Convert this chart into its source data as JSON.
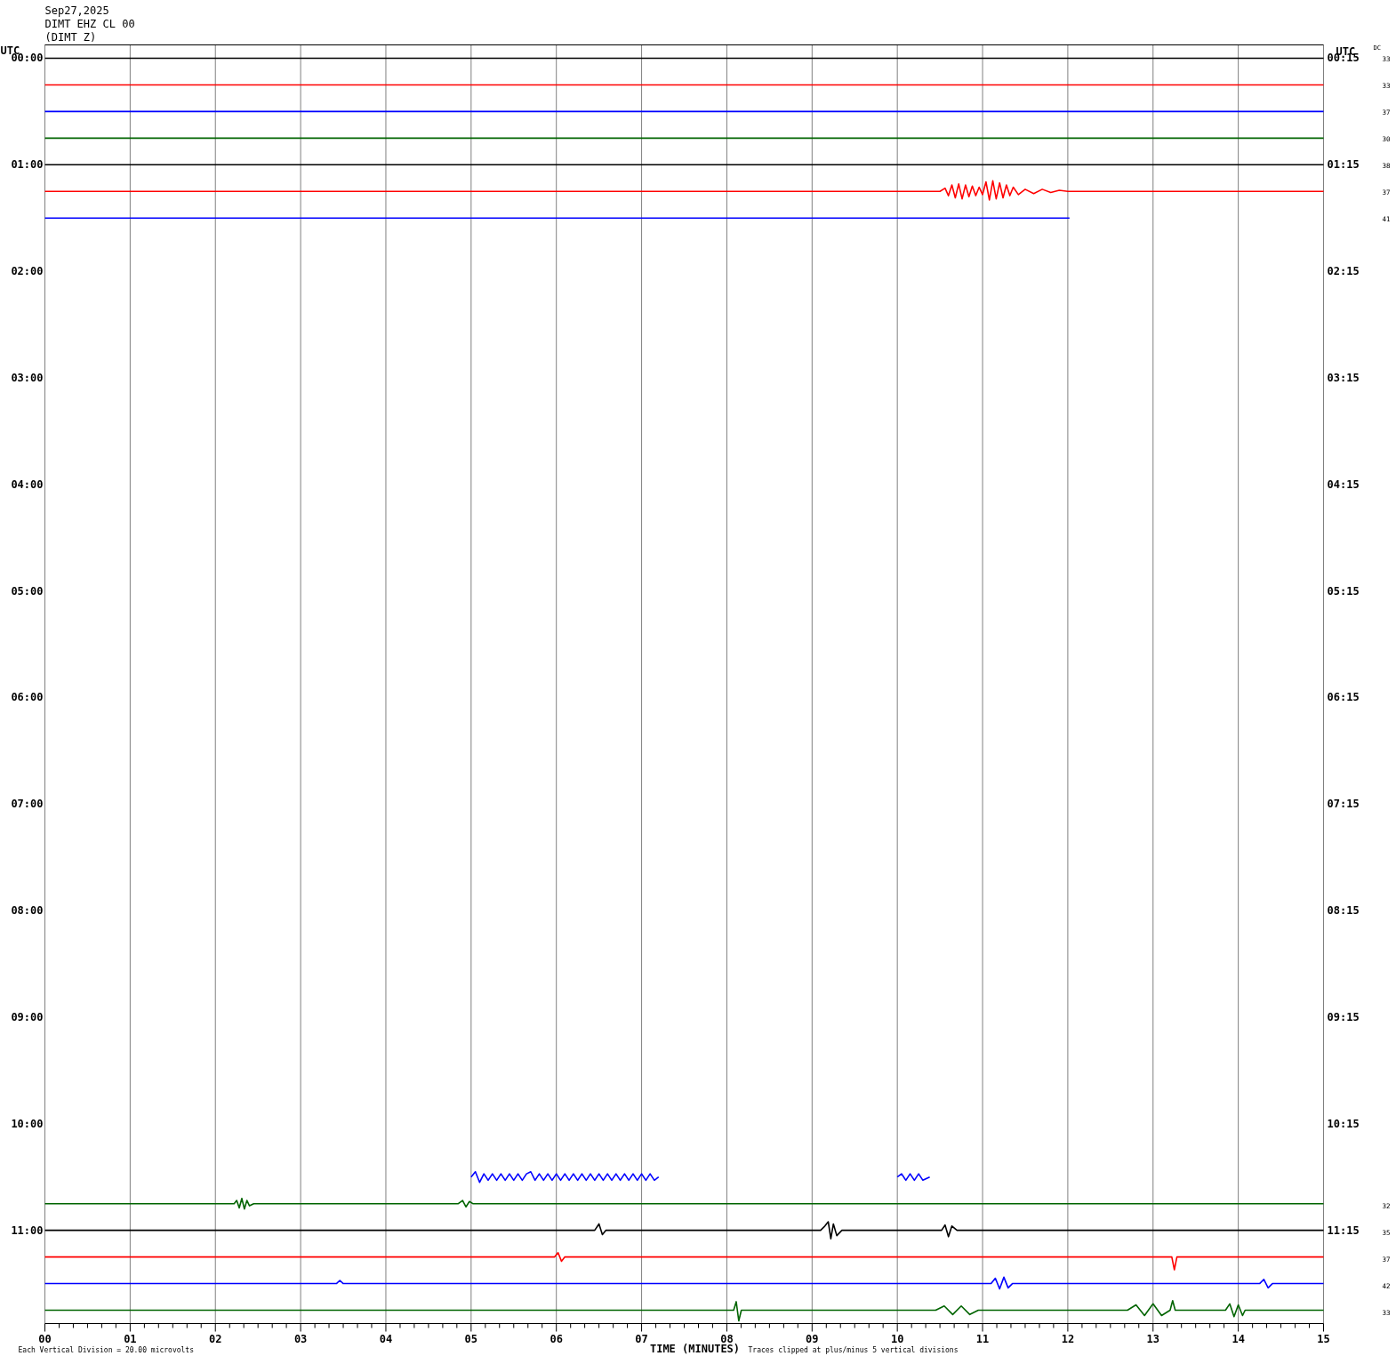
{
  "chart_data": {
    "type": "line",
    "title": "Sep27,2025",
    "subtitle": "DIMT EHZ CL 00\n(DIMT Z)",
    "xlabel": "TIME (MINUTES)",
    "ylabel": "UTC",
    "y2label": "UTC",
    "annotations": [
      "DC",
      "33",
      "33",
      "37",
      "30",
      "38",
      "37",
      "41",
      "32",
      "35",
      "37",
      "42",
      "33",
      "Each Vertical Division = 20.00 microvolts",
      "Traces clipped at plus/minus 5 vertical divisions"
    ],
    "xlim": [
      0,
      15
    ],
    "xticks": [
      {
        "value": 0,
        "label": "00"
      },
      {
        "value": 0.167,
        "label": null
      },
      {
        "value": 0.333,
        "label": null
      },
      {
        "value": 0.5,
        "label": null
      },
      {
        "value": 0.667,
        "label": null
      },
      {
        "value": 0.833,
        "label": null
      },
      {
        "value": 1,
        "label": "01"
      },
      {
        "value": 1.167,
        "label": null
      },
      {
        "value": 1.333,
        "label": null
      },
      {
        "value": 1.5,
        "label": null
      },
      {
        "value": 1.667,
        "label": null
      },
      {
        "value": 1.833,
        "label": null
      },
      {
        "value": 2,
        "label": "02"
      },
      {
        "value": 2.167,
        "label": null
      },
      {
        "value": 2.333,
        "label": null
      },
      {
        "value": 2.5,
        "label": null
      },
      {
        "value": 2.667,
        "label": null
      },
      {
        "value": 2.833,
        "label": null
      },
      {
        "value": 3,
        "label": "03"
      },
      {
        "value": 3.167,
        "label": null
      },
      {
        "value": 3.333,
        "label": null
      },
      {
        "value": 3.5,
        "label": null
      },
      {
        "value": 3.667,
        "label": null
      },
      {
        "value": 3.833,
        "label": null
      },
      {
        "value": 4,
        "label": "04"
      },
      {
        "value": 4.167,
        "label": null
      },
      {
        "value": 4.333,
        "label": null
      },
      {
        "value": 4.5,
        "label": null
      },
      {
        "value": 4.667,
        "label": null
      },
      {
        "value": 4.833,
        "label": null
      },
      {
        "value": 5,
        "label": "05"
      },
      {
        "value": 5.167,
        "label": null
      },
      {
        "value": 5.333,
        "label": null
      },
      {
        "value": 5.5,
        "label": null
      },
      {
        "value": 5.667,
        "label": null
      },
      {
        "value": 5.833,
        "label": null
      },
      {
        "value": 6,
        "label": "06"
      },
      {
        "value": 6.167,
        "label": null
      },
      {
        "value": 6.333,
        "label": null
      },
      {
        "value": 6.5,
        "label": null
      },
      {
        "value": 6.667,
        "label": null
      },
      {
        "value": 6.833,
        "label": null
      },
      {
        "value": 7,
        "label": "07"
      },
      {
        "value": 7.167,
        "label": null
      },
      {
        "value": 7.333,
        "label": null
      },
      {
        "value": 7.5,
        "label": null
      },
      {
        "value": 7.667,
        "label": null
      },
      {
        "value": 7.833,
        "label": null
      },
      {
        "value": 8,
        "label": "08"
      },
      {
        "value": 8.167,
        "label": null
      },
      {
        "value": 8.333,
        "label": null
      },
      {
        "value": 8.5,
        "label": null
      },
      {
        "value": 8.667,
        "label": null
      },
      {
        "value": 8.833,
        "label": null
      },
      {
        "value": 9,
        "label": "09"
      },
      {
        "value": 9.167,
        "label": null
      },
      {
        "value": 9.333,
        "label": null
      },
      {
        "value": 9.5,
        "label": null
      },
      {
        "value": 9.667,
        "label": null
      },
      {
        "value": 9.833,
        "label": null
      },
      10,
      {
        "value": 10.167,
        "label": null
      },
      {
        "value": 10.333,
        "label": null
      },
      {
        "value": 10.5,
        "label": null
      },
      {
        "value": 10.667,
        "label": null
      },
      {
        "value": 10.833,
        "label": null
      },
      11,
      {
        "value": 11.167,
        "label": null
      },
      {
        "value": 11.333,
        "label": null
      },
      {
        "value": 11.5,
        "label": null
      },
      {
        "value": 11.667,
        "label": null
      },
      {
        "value": 11.833,
        "label": null
      },
      12,
      {
        "value": 12.167,
        "label": null
      },
      {
        "value": 12.333,
        "label": null
      },
      {
        "value": 12.5,
        "label": null
      },
      {
        "value": 12.667,
        "label": null
      },
      {
        "value": 12.833,
        "label": null
      },
      13,
      {
        "value": 13.167,
        "label": null
      },
      {
        "value": 13.333,
        "label": null
      },
      {
        "value": 13.5,
        "label": null
      },
      {
        "value": 13.667,
        "label": null
      },
      {
        "value": 13.833,
        "label": null
      },
      14,
      {
        "value": 14.167,
        "label": null
      },
      {
        "value": 14.333,
        "label": null
      },
      {
        "value": 14.5,
        "label": null
      },
      {
        "value": 14.667,
        "label": null
      },
      {
        "value": 14.833,
        "label": null
      },
      15
    ],
    "ylim": [
      11.875,
      -0.125
    ],
    "yticks": [
      {
        "value": 0,
        "label": "00:00"
      },
      {
        "value": 1,
        "label": "01:00"
      },
      {
        "value": 2,
        "label": "02:00"
      },
      {
        "value": 3,
        "label": "03:00"
      },
      {
        "value": 4,
        "label": "04:00"
      },
      {
        "value": 5,
        "label": "05:00"
      },
      {
        "value": 6,
        "label": "06:00"
      },
      {
        "value": 7,
        "label": "07:00"
      },
      {
        "value": 8,
        "label": "08:00"
      },
      {
        "value": 9,
        "label": "09:00"
      },
      {
        "value": 10,
        "label": "10:00"
      },
      {
        "value": 11,
        "label": "11:00"
      }
    ],
    "y2lim": [
      12.125,
      0.125
    ],
    "y2ticks": [
      {
        "value": 0.25,
        "label": "00:15"
      },
      {
        "value": 1.25,
        "label": "01:15"
      },
      {
        "value": 2.25,
        "label": "02:15"
      },
      {
        "value": 3.25,
        "label": "03:15"
      },
      {
        "value": 4.25,
        "label": "04:15"
      },
      {
        "value": 5.25,
        "label": "05:15"
      },
      {
        "value": 6.25,
        "label": "06:15"
      },
      {
        "value": 7.25,
        "label": "07:15"
      },
      {
        "value": 8.25,
        "label": "08:15"
      },
      {
        "value": 9.25,
        "label": "09:15"
      },
      {
        "value": 10.25,
        "label": "10:15"
      },
      {
        "value": 11.25,
        "label": "11:15"
      }
    ],
    "grid": "x",
    "line_style": "solid",
    "series": [
      {
        "color": "#000000",
        "x": [
          0,
          15
        ],
        "values": [
          0,
          0
        ]
      },
      {
        "color": "#ff0000",
        "x": [
          0,
          15
        ],
        "values": [
          0.25,
          0.25
        ]
      },
      {
        "color": "#0000ff",
        "x": [
          0,
          15
        ],
        "values": [
          0.5,
          0.5
        ]
      },
      {
        "color": "#006400",
        "x": [
          0,
          15
        ],
        "values": [
          0.75,
          0.75
        ]
      },
      {
        "color": "#000000",
        "x": [
          0,
          15
        ],
        "values": [
          1,
          1
        ]
      },
      {
        "color": "#ff0000",
        "x": [
          0,
          10.5,
          10.56,
          10.6,
          10.64,
          10.68,
          10.72,
          10.76,
          10.8,
          10.84,
          10.88,
          10.92,
          10.96,
          11.0,
          11.04,
          11.08,
          11.12,
          11.16,
          11.2,
          11.24,
          11.28,
          11.32,
          11.36,
          11.42,
          11.5,
          11.6,
          11.7,
          11.8,
          11.9,
          12.0,
          15
        ],
        "values": [
          1.25,
          1.25,
          1.22,
          1.29,
          1.19,
          1.31,
          1.18,
          1.32,
          1.19,
          1.3,
          1.2,
          1.29,
          1.21,
          1.28,
          1.16,
          1.33,
          1.15,
          1.32,
          1.17,
          1.31,
          1.19,
          1.29,
          1.21,
          1.28,
          1.23,
          1.27,
          1.23,
          1.26,
          1.24,
          1.25,
          1.25
        ]
      },
      {
        "color": "#0000ff",
        "x": [
          0,
          12.02
        ],
        "values": [
          1.5,
          1.5
        ]
      },
      {
        "color": "#0000ff",
        "x": [
          5.0,
          5.05,
          5.1,
          5.15,
          5.2,
          5.25,
          5.3,
          5.35,
          5.4,
          5.45,
          5.5,
          5.55,
          5.6,
          5.65,
          5.7,
          5.75,
          5.8,
          5.85,
          5.9,
          5.95,
          6.0,
          6.05,
          6.1,
          6.15,
          6.2,
          6.25,
          6.3,
          6.35,
          6.4,
          6.45,
          6.5,
          6.55,
          6.6,
          6.65,
          6.7,
          6.75,
          6.8,
          6.85,
          6.9,
          6.95,
          7.0,
          7.05,
          7.1,
          7.15,
          7.2,
          8.6,
          10.0,
          10.05,
          10.1,
          10.15,
          10.2,
          10.25,
          10.3,
          10.38
        ],
        "values": [
          10.5,
          10.45,
          10.55,
          10.47,
          10.53,
          10.47,
          10.53,
          10.47,
          10.53,
          10.47,
          10.53,
          10.47,
          10.53,
          10.47,
          10.45,
          10.53,
          10.47,
          10.53,
          10.47,
          10.53,
          10.47,
          10.53,
          10.47,
          10.53,
          10.47,
          10.53,
          10.47,
          10.53,
          10.47,
          10.53,
          10.47,
          10.53,
          10.47,
          10.53,
          10.47,
          10.53,
          10.47,
          10.53,
          10.47,
          10.53,
          10.47,
          10.53,
          10.47,
          10.53,
          10.5,
          null,
          10.5,
          10.47,
          10.53,
          10.47,
          10.53,
          10.47,
          10.53,
          10.5
        ]
      },
      {
        "color": "#006400",
        "x": [
          0,
          2.22,
          2.25,
          2.28,
          2.31,
          2.34,
          2.37,
          2.4,
          2.45,
          4.85,
          4.9,
          4.94,
          4.98,
          5.02,
          15
        ],
        "values": [
          10.75,
          10.75,
          10.72,
          10.79,
          10.7,
          10.8,
          10.72,
          10.77,
          10.75,
          10.75,
          10.72,
          10.78,
          10.73,
          10.75,
          10.75
        ]
      },
      {
        "color": "#000000",
        "x": [
          0,
          6.45,
          6.5,
          6.54,
          6.58,
          9.1,
          9.15,
          9.19,
          9.22,
          9.25,
          9.29,
          9.35,
          10.52,
          10.56,
          10.6,
          10.64,
          10.7,
          15
        ],
        "values": [
          11,
          11,
          10.94,
          11.04,
          11,
          11,
          10.96,
          10.92,
          11.08,
          10.94,
          11.05,
          11,
          11,
          10.95,
          11.06,
          10.96,
          11,
          11
        ]
      },
      {
        "color": "#ff0000",
        "x": [
          0,
          5.98,
          6.02,
          6.06,
          6.1,
          13.22,
          13.25,
          13.28,
          15
        ],
        "values": [
          11.25,
          11.25,
          11.21,
          11.29,
          11.25,
          11.25,
          11.37,
          11.25,
          11.25
        ]
      },
      {
        "color": "#0000ff",
        "x": [
          0,
          3.42,
          3.46,
          3.5,
          11.1,
          11.15,
          11.2,
          11.25,
          11.3,
          11.35,
          14.25,
          14.3,
          14.35,
          14.4,
          15
        ],
        "values": [
          11.5,
          11.5,
          11.47,
          11.5,
          11.5,
          11.45,
          11.55,
          11.44,
          11.54,
          11.5,
          11.5,
          11.46,
          11.54,
          11.5,
          11.5
        ]
      },
      {
        "color": "#006400",
        "x": [
          0,
          8.08,
          8.11,
          8.14,
          8.17,
          10.45,
          10.55,
          10.65,
          10.75,
          10.85,
          10.95,
          12.7,
          12.8,
          12.9,
          13.0,
          13.1,
          13.2,
          13.23,
          13.26,
          13.85,
          13.9,
          13.95,
          14.0,
          14.05,
          14.08,
          15
        ],
        "values": [
          11.75,
          11.75,
          11.67,
          11.85,
          11.75,
          11.75,
          11.71,
          11.79,
          11.71,
          11.79,
          11.75,
          11.75,
          11.7,
          11.8,
          11.69,
          11.8,
          11.75,
          11.66,
          11.75,
          11.75,
          11.69,
          11.81,
          11.7,
          11.8,
          11.75,
          11.75
        ]
      }
    ]
  }
}
